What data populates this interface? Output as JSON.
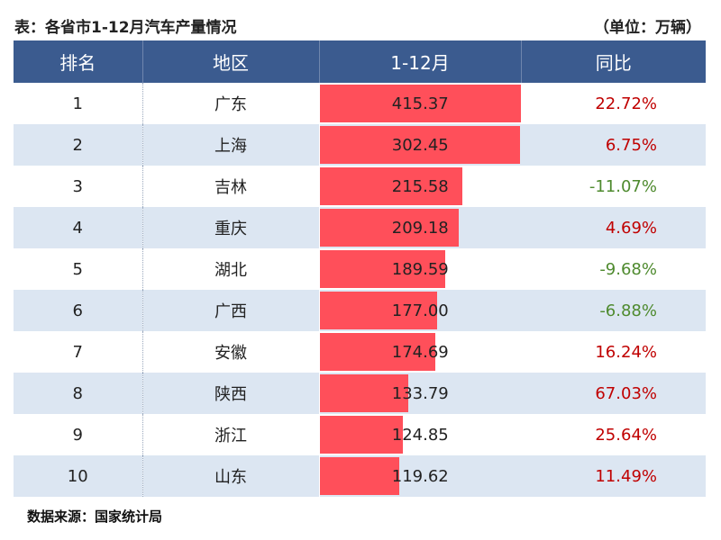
{
  "title": "表：各省市1-12月汽车产量情况",
  "unit": "（单位：万辆）",
  "table": {
    "header": [
      "排名",
      "地区",
      "1-12月",
      "同比"
    ],
    "rows": [
      [
        "1",
        "广东",
        "415.37",
        "22.72%"
      ],
      [
        "2",
        "上海",
        "302.45",
        "6.75%"
      ],
      [
        "3",
        "吉林",
        "215.58",
        "-11.07%"
      ],
      [
        "4",
        "重庆",
        "209.18",
        "4.69%"
      ],
      [
        "5",
        "湖北",
        "189.59",
        "-9.68%"
      ],
      [
        "6",
        "广西",
        "177.00",
        "-6.88%"
      ],
      [
        "7",
        "安徽",
        "174.69",
        "16.24%"
      ],
      [
        "8",
        "陕西",
        "133.79",
        "67.03%"
      ],
      [
        "9",
        "浙江",
        "124.85",
        "25.64%"
      ],
      [
        "10",
        "山东",
        "119.62",
        "11.49%"
      ]
    ]
  },
  "source": "数据来源：国家统计局"
}
